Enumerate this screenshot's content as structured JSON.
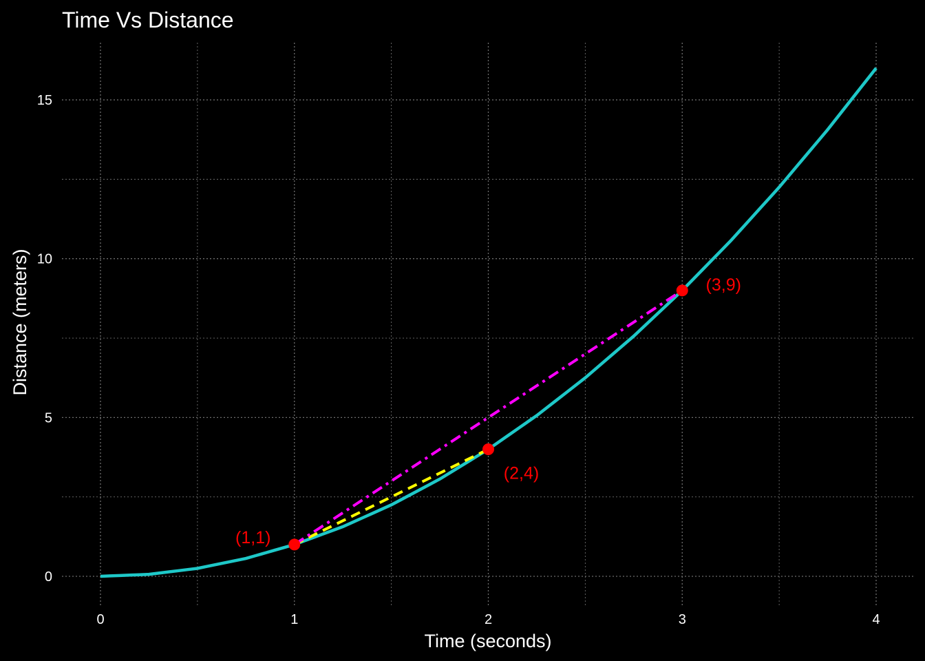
{
  "chart_data": {
    "type": "line",
    "title": "Time Vs Distance",
    "xlabel": "Time (seconds)",
    "ylabel": "Distance (meters)",
    "xlim": [
      0,
      4
    ],
    "ylim": [
      0,
      16
    ],
    "x_ticks": [
      0,
      1,
      2,
      3,
      4
    ],
    "x_tick_labels": [
      "0",
      "1",
      "2",
      "3",
      "4"
    ],
    "y_ticks": [
      0,
      5,
      10,
      15
    ],
    "y_tick_labels": [
      "0",
      "5",
      "10",
      "15"
    ],
    "grid": true,
    "background": "#000000",
    "series": [
      {
        "style": "solid",
        "color": "#1ec8c8",
        "x": [
          0,
          0.25,
          0.5,
          0.75,
          1,
          1.25,
          1.5,
          1.75,
          2,
          2.25,
          2.5,
          2.75,
          3,
          3.25,
          3.5,
          3.75,
          4
        ],
        "y": [
          0,
          0.0625,
          0.25,
          0.5625,
          1,
          1.5625,
          2.25,
          3.0625,
          4,
          5.0625,
          6.25,
          7.5625,
          9,
          10.5625,
          12.25,
          14.0625,
          16
        ]
      },
      {
        "style": "dashed",
        "color": "#ffff00",
        "x": [
          1,
          2
        ],
        "y": [
          1,
          4
        ]
      },
      {
        "style": "dashdot",
        "color": "#ff00ff",
        "x": [
          1,
          3
        ],
        "y": [
          1,
          9
        ]
      }
    ],
    "points": [
      {
        "x": 1,
        "y": 1,
        "label": "(1,1)"
      },
      {
        "x": 2,
        "y": 4,
        "label": "(2,4)"
      },
      {
        "x": 3,
        "y": 9,
        "label": "(3,9)"
      }
    ],
    "point_color": "#ff0000",
    "text_color": "#ffffff",
    "grid_color": "#6e6e6e"
  }
}
